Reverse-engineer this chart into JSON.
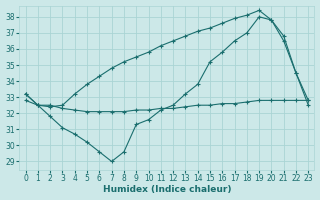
{
  "xlabel": "Humidex (Indice chaleur)",
  "bg_color": "#cce8e8",
  "line_color": "#1a6e6e",
  "grid_color": "#aad4d4",
  "xlim": [
    -0.5,
    23.5
  ],
  "ylim": [
    28.5,
    38.7
  ],
  "yticks": [
    29,
    30,
    31,
    32,
    33,
    34,
    35,
    36,
    37,
    38
  ],
  "xticks": [
    0,
    1,
    2,
    3,
    4,
    5,
    6,
    7,
    8,
    9,
    10,
    11,
    12,
    13,
    14,
    15,
    16,
    17,
    18,
    19,
    20,
    21,
    22,
    23
  ],
  "series": [
    {
      "x": [
        0,
        1,
        2,
        3,
        4,
        5,
        6,
        7,
        8,
        9,
        10,
        11,
        12,
        13,
        14,
        15,
        16,
        17,
        18,
        19,
        20,
        21,
        22,
        23
      ],
      "y": [
        32.8,
        32.5,
        32.5,
        32.3,
        32.2,
        32.1,
        32.1,
        32.1,
        32.1,
        32.2,
        32.2,
        32.3,
        32.3,
        32.4,
        32.5,
        32.5,
        32.6,
        32.6,
        32.7,
        32.8,
        32.8,
        32.8,
        32.8,
        32.8
      ]
    },
    {
      "x": [
        0,
        1,
        2,
        3,
        4,
        5,
        6,
        7,
        8,
        9,
        10,
        11,
        12,
        13,
        14,
        15,
        16,
        17,
        18,
        19,
        20,
        21,
        22,
        23
      ],
      "y": [
        33.2,
        32.5,
        31.8,
        31.1,
        30.7,
        30.2,
        29.6,
        29.0,
        29.6,
        31.3,
        31.6,
        32.2,
        32.5,
        33.2,
        33.8,
        35.2,
        35.8,
        36.5,
        37.0,
        38.0,
        37.8,
        36.5,
        34.5,
        32.5
      ]
    },
    {
      "x": [
        0,
        1,
        2,
        3,
        4,
        5,
        6,
        7,
        8,
        9,
        10,
        11,
        12,
        13,
        14,
        15,
        16,
        17,
        18,
        19,
        20,
        21,
        22,
        23
      ],
      "y": [
        33.2,
        32.5,
        32.4,
        32.5,
        33.2,
        33.8,
        34.3,
        34.8,
        35.2,
        35.5,
        35.8,
        36.2,
        36.5,
        36.8,
        37.1,
        37.3,
        37.6,
        37.9,
        38.1,
        38.4,
        37.8,
        36.8,
        34.5,
        32.8
      ]
    }
  ]
}
